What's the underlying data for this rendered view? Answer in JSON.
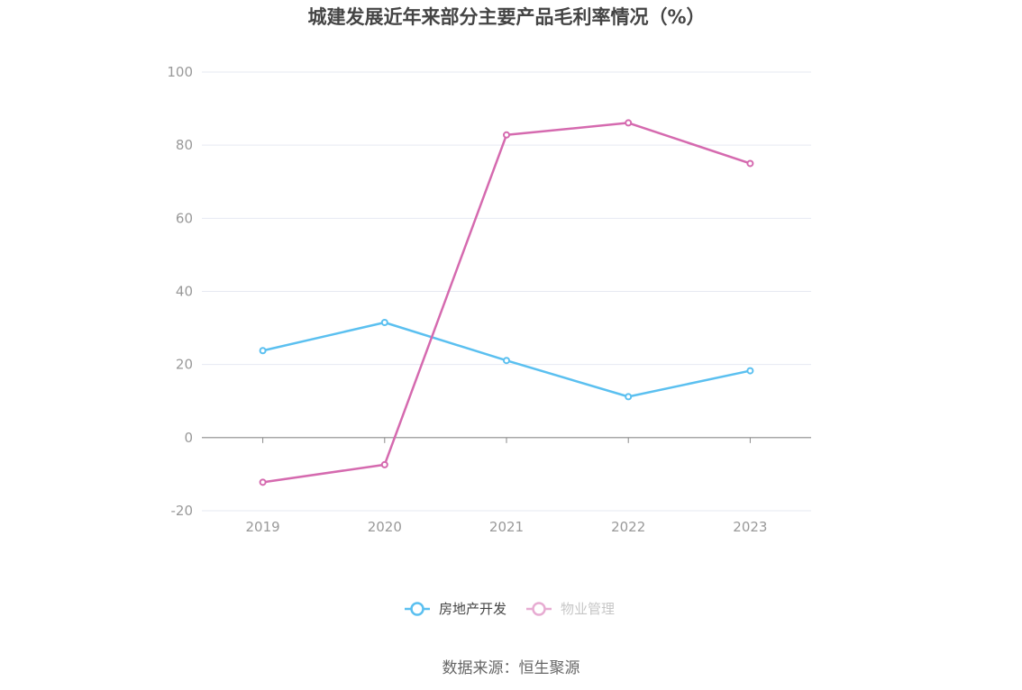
{
  "chart_data": {
    "type": "line",
    "title": "城建发展近年来部分主要产品毛利率情况（%）",
    "categories": [
      "2019",
      "2020",
      "2021",
      "2022",
      "2023"
    ],
    "ylim": [
      -20,
      100
    ],
    "yticks": [
      100,
      80,
      60,
      40,
      20,
      0,
      -20
    ],
    "grid": true,
    "legend_position": "bottom",
    "series": [
      {
        "name": "房地产开发",
        "color": "#5bc0f0",
        "values": [
          23.8,
          31.5,
          21.1,
          11.2,
          18.3
        ]
      },
      {
        "name": "物业管理",
        "color": "#d56aaf",
        "values": [
          -12.2,
          -7.4,
          82.8,
          86.1,
          75.0
        ]
      }
    ],
    "legend_text_colors": [
      "#444444",
      "#999999"
    ]
  },
  "source": "数据来源：恒生聚源"
}
